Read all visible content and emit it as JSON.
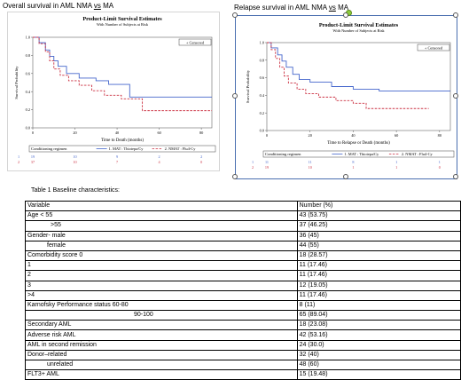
{
  "headings": {
    "left_prefix": "Overall survival in AML NMA ",
    "left_vs": "vs",
    "left_suffix": " MA",
    "right_prefix": "Relapse survival in AML NMA ",
    "right_vs": "vs",
    "right_suffix": " MA"
  },
  "chart_data": [
    {
      "type": "line",
      "step": true,
      "title": "Product-Limit Survival Estimates",
      "subtitle": "With Number of Subjects at Risk",
      "xlabel": "Time to Death (months)",
      "ylabel": "Survival Probability",
      "xlim": [
        0,
        85
      ],
      "ylim": [
        0,
        1
      ],
      "xticks": [
        0,
        20,
        40,
        60,
        80
      ],
      "yticks": [
        0.0,
        0.2,
        0.4,
        0.6,
        0.8,
        1.0
      ],
      "legend_title": "Conditioning regimen",
      "censored_label": "+ Censored",
      "grid": false,
      "series": [
        {
          "name": "1. MAT : Thiotepa/Cy",
          "style": "solid",
          "color": "#4466cc",
          "x": [
            0,
            3,
            6,
            8,
            10,
            12,
            16,
            22,
            30,
            36,
            46,
            70,
            85
          ],
          "y": [
            1.0,
            0.94,
            0.86,
            0.79,
            0.74,
            0.68,
            0.6,
            0.55,
            0.52,
            0.48,
            0.34,
            0.34,
            0.34
          ]
        },
        {
          "name": "2. NMAT : Flu4-Cy",
          "style": "dashed",
          "color": "#cc3344",
          "x": [
            0,
            3,
            6,
            8,
            10,
            13,
            17,
            22,
            28,
            34,
            42,
            52,
            62,
            85
          ],
          "y": [
            1.0,
            0.93,
            0.84,
            0.74,
            0.65,
            0.58,
            0.52,
            0.47,
            0.41,
            0.36,
            0.32,
            0.19,
            0.19,
            0.19
          ]
        }
      ],
      "at_risk": [
        {
          "group": "1",
          "values": [
            "19",
            "10",
            "9",
            "2",
            "2"
          ]
        },
        {
          "group": "2",
          "values": [
            "37",
            "10",
            "7",
            "4",
            "0"
          ]
        }
      ]
    },
    {
      "type": "line",
      "step": true,
      "title": "Product-Limit Survival Estimates",
      "subtitle": "With Number of Subjects at Risk",
      "xlabel": "Time to Relapse or Death (months)",
      "ylabel": "Survival Probability",
      "xlim": [
        0,
        85
      ],
      "ylim": [
        0,
        1
      ],
      "xticks": [
        0,
        20,
        40,
        60,
        80
      ],
      "yticks": [
        0.0,
        0.2,
        0.4,
        0.6,
        0.8,
        1.0
      ],
      "legend_title": "Conditioning regimen",
      "censored_label": "+ Censored",
      "grid": false,
      "series": [
        {
          "name": "1. MAT : Thiotepa/Cy",
          "style": "solid",
          "color": "#4466cc",
          "x": [
            0,
            2,
            5,
            7,
            9,
            12,
            15,
            20,
            30,
            40,
            52,
            85
          ],
          "y": [
            1.0,
            0.94,
            0.86,
            0.79,
            0.72,
            0.64,
            0.58,
            0.55,
            0.5,
            0.47,
            0.45,
            0.45
          ]
        },
        {
          "name": "2. NMAT : Flu4-Cy",
          "style": "dashed",
          "color": "#cc3344",
          "x": [
            0,
            2,
            4,
            6,
            8,
            10,
            14,
            18,
            24,
            32,
            40,
            46,
            75
          ],
          "y": [
            1.0,
            0.92,
            0.82,
            0.72,
            0.62,
            0.54,
            0.47,
            0.42,
            0.38,
            0.34,
            0.31,
            0.25,
            0.25
          ]
        }
      ],
      "at_risk": [
        {
          "group": "1",
          "values": [
            "11",
            "11",
            "8",
            "1",
            "1"
          ]
        },
        {
          "group": "2",
          "values": [
            "19",
            "10",
            "1",
            "1",
            "0"
          ]
        }
      ]
    }
  ],
  "table": {
    "title": "Table 1 Baseline characteristics:",
    "rows": [
      {
        "label": "Variable",
        "value": "Number (%)",
        "indent": 0
      },
      {
        "label": "Age < 55",
        "value": "43 (53.75)",
        "indent": 0
      },
      {
        "label": ">55",
        "value": "37 (46.25)",
        "indent": 26
      },
      {
        "label": "Gender- male",
        "value": "36 (45)",
        "indent": 0
      },
      {
        "label": "female",
        "value": "44 (55)",
        "indent": 22
      },
      {
        "label": "Comorbidity score 0",
        "value": "18 (28.57)",
        "indent": 0
      },
      {
        "label": "1",
        "value": "11 (17.46)",
        "indent": 0
      },
      {
        "label": "2",
        "value": "11 (17.46)",
        "indent": 0
      },
      {
        "label": "3",
        "value": "12 (19.05)",
        "indent": 0
      },
      {
        "label": ">4",
        "value": "11 (17.46)",
        "indent": 0
      },
      {
        "label": "Karnofsky Performance status 60-80",
        "value": "8 (11)",
        "indent": 0
      },
      {
        "label": "90-100",
        "value": "65 (89.04)",
        "indent": 120
      },
      {
        "label": "Secondary AML",
        "value": "18 (23.08)",
        "indent": 0
      },
      {
        "label": "Adverse risk AML",
        "value": "42 (53.16)",
        "indent": 0
      },
      {
        "label": "AML in second remission",
        "value": "24 (30.0)",
        "indent": 0
      },
      {
        "label": "Donor–related",
        "value": "32 (40)",
        "indent": 0
      },
      {
        "label": "unrelated",
        "value": "48 (60)",
        "indent": 22
      },
      {
        "label": "FLT3+ AML",
        "value": "15 (19.48)",
        "indent": 0
      }
    ]
  }
}
